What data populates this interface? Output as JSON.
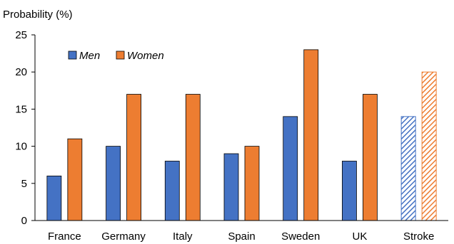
{
  "chart_data": {
    "type": "bar",
    "ylabel": "Probability (%)",
    "ylim": [
      0,
      25
    ],
    "yticks": [
      0,
      5,
      10,
      15,
      20,
      25
    ],
    "grid": false,
    "legend_position": "top-left",
    "categories": [
      "France",
      "Germany",
      "Italy",
      "Spain",
      "Sweden",
      "UK",
      "Stroke"
    ],
    "series": [
      {
        "name": "Men",
        "color": "#4472C4",
        "values": [
          6,
          10,
          8,
          9,
          14,
          8,
          14
        ]
      },
      {
        "name": "Women",
        "color": "#ED7D31",
        "values": [
          11,
          17,
          17,
          10,
          23,
          17,
          20
        ]
      }
    ],
    "hatched_categories": [
      "Stroke"
    ]
  }
}
